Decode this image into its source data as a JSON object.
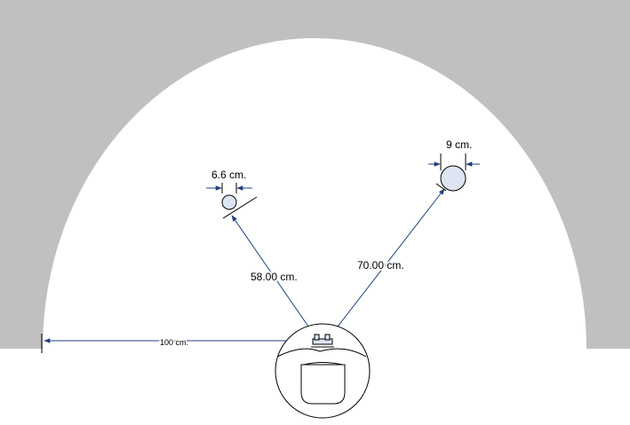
{
  "colors": {
    "wall": "#c0c0c0",
    "floor": "#ffffff",
    "dimension_line": "#1f3f7f",
    "outline": "#000000",
    "ball_fill": "#dde4f2"
  },
  "labels": {
    "small_ball_diameter": "6.6 cm.",
    "large_ball_diameter": "9 cm.",
    "small_ball_distance": "58.00 cm.",
    "large_ball_distance": "70.00 cm.",
    "radius": "100 cm."
  },
  "icons": {
    "arrowhead": "arrowhead-icon",
    "robot": "robot-icon"
  }
}
